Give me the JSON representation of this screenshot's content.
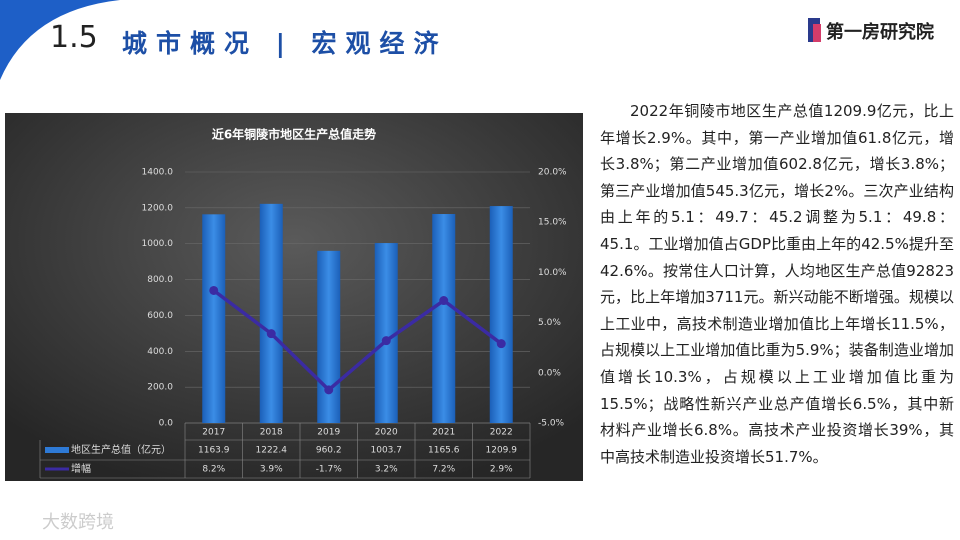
{
  "header": {
    "section": "1.5",
    "title": "城市概况 | 宏观经济",
    "logo": "第一房研究院"
  },
  "chart_data": {
    "type": "bar-line",
    "title": "近6年铜陵市地区生产总值走势",
    "categories": [
      "2017",
      "2018",
      "2019",
      "2020",
      "2021",
      "2022"
    ],
    "series": [
      {
        "name": "地区生产总值（亿元）",
        "color": "#2e7ad6",
        "values": [
          1163.9,
          1222.4,
          960.2,
          1003.7,
          1165.6,
          1209.9
        ]
      },
      {
        "name": "增幅",
        "color": "#3b2ba3",
        "axis": "y2",
        "values": [
          8.2,
          3.9,
          -1.7,
          3.2,
          7.2,
          2.9
        ],
        "value_labels": [
          "8.2%",
          "3.9%",
          "-1.7%",
          "3.2%",
          "7.2%",
          "2.9%"
        ]
      }
    ],
    "ylim": [
      0,
      1400
    ],
    "yticks": [
      {
        "value": 0,
        "label": "0.0"
      },
      {
        "value": 200,
        "label": "200.0"
      },
      {
        "value": 400,
        "label": "400.0"
      },
      {
        "value": 600,
        "label": "600.0"
      },
      {
        "value": 800,
        "label": "800.0"
      },
      {
        "value": 1000,
        "label": "1000.0"
      },
      {
        "value": 1200,
        "label": "1200.0"
      },
      {
        "value": 1400,
        "label": "1400.0"
      }
    ],
    "y2lim": [
      -5,
      20
    ],
    "y2ticks": [
      {
        "value": -5,
        "label": "-5.0%"
      },
      {
        "value": 0,
        "label": "0.0%"
      },
      {
        "value": 5,
        "label": "5.0%"
      },
      {
        "value": 10,
        "label": "10.0%"
      },
      {
        "value": 15,
        "label": "15.0%"
      },
      {
        "value": 20,
        "label": "20.0%"
      }
    ],
    "grid": true
  },
  "body": {
    "text": "2022年铜陵市地区生产总值1209.9亿元，比上年增长2.9%。其中，第一产业增加值61.8亿元，增长3.8%；第二产业增加值602.8亿元，增长3.8%；第三产业增加值545.3亿元，增长2%。三次产业结构由上年的5.1：49.7：45.2调整为5.1：49.8：45.1。工业增加值占GDP比重由上年的42.5%提升至42.6%。按常住人口计算，人均地区生产总值92823元，比上年增加3711元。新兴动能不断增强。规模以上工业中，高技术制造业增加值比上年增长11.5%，占规模以上工业增加值比重为5.9%；装备制造业增加值增长10.3%，占规模以上工业增加值比重为15.5%；战略性新兴产业总产值增长6.5%，其中新材料产业增长6.8%。高技术产业投资增长39%，其中高技术制造业投资增长51.7%。"
  },
  "watermark": "大数跨境"
}
